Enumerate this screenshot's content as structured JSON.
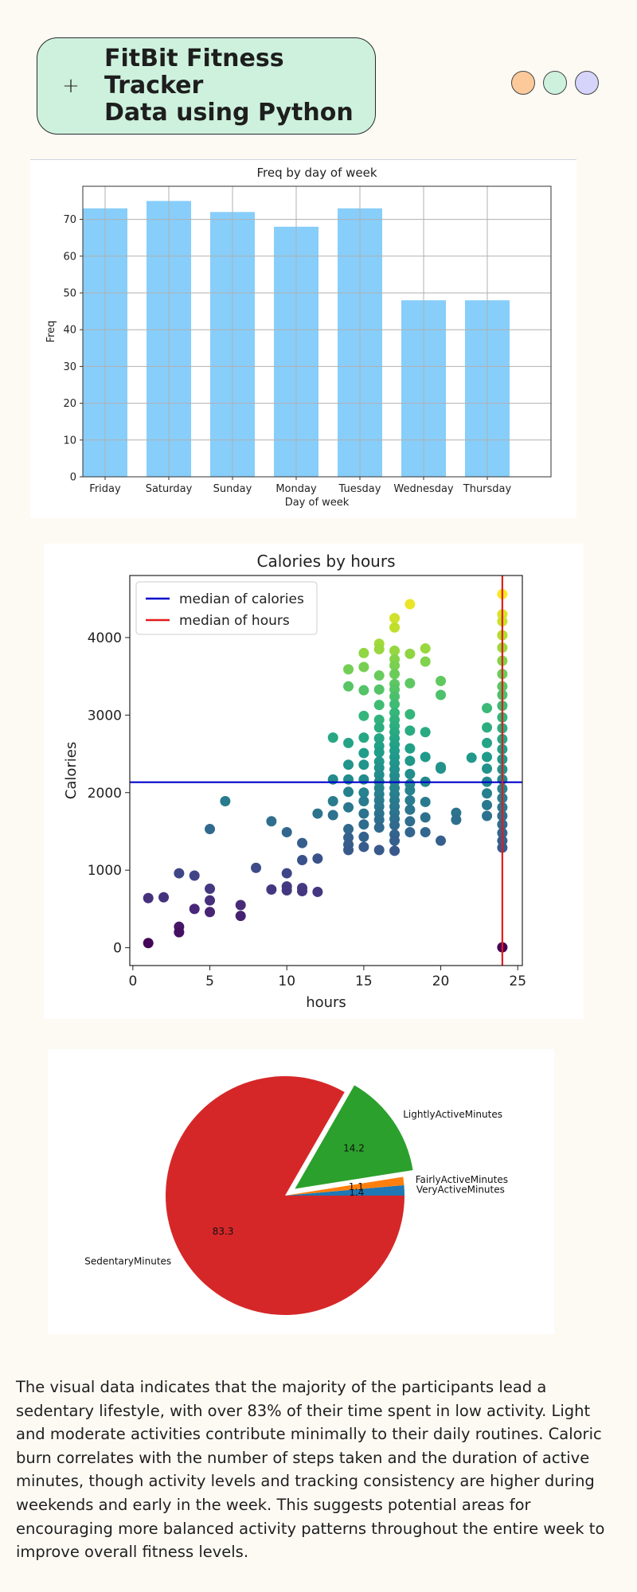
{
  "header": {
    "plus_icon": "plus-icon",
    "title_line1": "FitBit Fitness Tracker",
    "title_line2": "Data using Python",
    "dots": [
      {
        "name": "orange-dot",
        "color": "#fbc99a"
      },
      {
        "name": "green-dot",
        "color": "#cdf1dd"
      },
      {
        "name": "purple-dot",
        "color": "#d6d4fa"
      }
    ]
  },
  "chart_data": [
    {
      "type": "bar",
      "title": "Freq by day of week",
      "xlabel": "Day of week",
      "ylabel": "Freq",
      "categories": [
        "Friday",
        "Saturday",
        "Sunday",
        "Monday",
        "Tuesday",
        "Wednesday",
        "Thursday"
      ],
      "values": [
        73,
        75,
        72,
        68,
        73,
        48,
        48
      ],
      "ylim": [
        0,
        79
      ],
      "yticks": [
        0,
        10,
        20,
        30,
        40,
        50,
        60,
        70
      ],
      "grid": true,
      "color": "#87cefa"
    },
    {
      "type": "scatter",
      "title": "Calories by  hours",
      "xlabel": "hours",
      "ylabel": "Calories",
      "xlim": [
        -0.2,
        25.3
      ],
      "ylim": [
        -230,
        4800
      ],
      "xticks": [
        0,
        5,
        10,
        15,
        20,
        25
      ],
      "yticks": [
        0,
        1000,
        2000,
        3000,
        4000
      ],
      "colormap": "viridis",
      "legend": {
        "placement": "upper-left",
        "entries": [
          {
            "label": "median of calories",
            "color": "#0000cc"
          },
          {
            "label": "median of hours",
            "color": "#e31a1c"
          }
        ]
      },
      "median_calories": 2134,
      "median_hours": 24,
      "points": [
        [
          1,
          60
        ],
        [
          1,
          640
        ],
        [
          2,
          650
        ],
        [
          3,
          960
        ],
        [
          3,
          270
        ],
        [
          3,
          200
        ],
        [
          4,
          930
        ],
        [
          4,
          500
        ],
        [
          5,
          760
        ],
        [
          5,
          610
        ],
        [
          5,
          460
        ],
        [
          5,
          1530
        ],
        [
          6,
          1890
        ],
        [
          7,
          550
        ],
        [
          7,
          410
        ],
        [
          8,
          1030
        ],
        [
          9,
          1630
        ],
        [
          9,
          750
        ],
        [
          10,
          1490
        ],
        [
          10,
          960
        ],
        [
          10,
          790
        ],
        [
          10,
          740
        ],
        [
          11,
          1350
        ],
        [
          11,
          1130
        ],
        [
          11,
          770
        ],
        [
          11,
          730
        ],
        [
          12,
          1730
        ],
        [
          12,
          1150
        ],
        [
          12,
          720
        ],
        [
          13,
          2710
        ],
        [
          13,
          2170
        ],
        [
          13,
          1890
        ],
        [
          13,
          1710
        ],
        [
          14,
          3590
        ],
        [
          14,
          3370
        ],
        [
          14,
          2640
        ],
        [
          14,
          2360
        ],
        [
          14,
          2170
        ],
        [
          14,
          2010
        ],
        [
          14,
          1810
        ],
        [
          14,
          1530
        ],
        [
          14,
          1420
        ],
        [
          14,
          1330
        ],
        [
          14,
          1260
        ],
        [
          15,
          3800
        ],
        [
          15,
          3620
        ],
        [
          15,
          3320
        ],
        [
          15,
          2990
        ],
        [
          15,
          2710
        ],
        [
          15,
          2510
        ],
        [
          15,
          2360
        ],
        [
          15,
          2170
        ],
        [
          15,
          2000
        ],
        [
          15,
          1890
        ],
        [
          15,
          1730
        ],
        [
          15,
          1590
        ],
        [
          15,
          1430
        ],
        [
          15,
          1300
        ],
        [
          16,
          3920
        ],
        [
          16,
          3850
        ],
        [
          16,
          3510
        ],
        [
          16,
          3330
        ],
        [
          16,
          3130
        ],
        [
          16,
          2940
        ],
        [
          16,
          2840
        ],
        [
          16,
          2700
        ],
        [
          16,
          2600
        ],
        [
          16,
          2520
        ],
        [
          16,
          2400
        ],
        [
          16,
          2320
        ],
        [
          16,
          2230
        ],
        [
          16,
          2140
        ],
        [
          16,
          2060
        ],
        [
          16,
          1980
        ],
        [
          16,
          1900
        ],
        [
          16,
          1820
        ],
        [
          16,
          1730
        ],
        [
          16,
          1650
        ],
        [
          16,
          1550
        ],
        [
          16,
          1260
        ],
        [
          17,
          4250
        ],
        [
          17,
          4130
        ],
        [
          17,
          3830
        ],
        [
          17,
          3720
        ],
        [
          17,
          3640
        ],
        [
          17,
          3530
        ],
        [
          17,
          3400
        ],
        [
          17,
          3330
        ],
        [
          17,
          3240
        ],
        [
          17,
          3140
        ],
        [
          17,
          3030
        ],
        [
          17,
          2940
        ],
        [
          17,
          2860
        ],
        [
          17,
          2780
        ],
        [
          17,
          2700
        ],
        [
          17,
          2620
        ],
        [
          17,
          2540
        ],
        [
          17,
          2460
        ],
        [
          17,
          2380
        ],
        [
          17,
          2300
        ],
        [
          17,
          2220
        ],
        [
          17,
          2140
        ],
        [
          17,
          2060
        ],
        [
          17,
          1980
        ],
        [
          17,
          1900
        ],
        [
          17,
          1820
        ],
        [
          17,
          1740
        ],
        [
          17,
          1660
        ],
        [
          17,
          1580
        ],
        [
          17,
          1460
        ],
        [
          17,
          1380
        ],
        [
          17,
          1250
        ],
        [
          18,
          4430
        ],
        [
          18,
          3790
        ],
        [
          18,
          3410
        ],
        [
          18,
          3010
        ],
        [
          18,
          2800
        ],
        [
          18,
          2570
        ],
        [
          18,
          2410
        ],
        [
          18,
          2240
        ],
        [
          18,
          2110
        ],
        [
          18,
          2030
        ],
        [
          18,
          1900
        ],
        [
          18,
          1780
        ],
        [
          18,
          1630
        ],
        [
          18,
          1490
        ],
        [
          19,
          3860
        ],
        [
          19,
          3690
        ],
        [
          19,
          2780
        ],
        [
          19,
          2460
        ],
        [
          19,
          2140
        ],
        [
          19,
          1880
        ],
        [
          19,
          1680
        ],
        [
          19,
          1490
        ],
        [
          20,
          3440
        ],
        [
          20,
          3260
        ],
        [
          20,
          2310
        ],
        [
          20,
          2330
        ],
        [
          20,
          1380
        ],
        [
          21,
          1740
        ],
        [
          21,
          1650
        ],
        [
          22,
          2450
        ],
        [
          23,
          3090
        ],
        [
          23,
          2840
        ],
        [
          23,
          2640
        ],
        [
          23,
          2460
        ],
        [
          23,
          2310
        ],
        [
          23,
          2140
        ],
        [
          23,
          1990
        ],
        [
          23,
          1840
        ],
        [
          23,
          1700
        ],
        [
          24,
          4560
        ],
        [
          24,
          4300
        ],
        [
          24,
          4210
        ],
        [
          24,
          4030
        ],
        [
          24,
          3870
        ],
        [
          24,
          3700
        ],
        [
          24,
          3530
        ],
        [
          24,
          3370
        ],
        [
          24,
          3260
        ],
        [
          24,
          3120
        ],
        [
          24,
          2970
        ],
        [
          24,
          2830
        ],
        [
          24,
          2690
        ],
        [
          24,
          2560
        ],
        [
          24,
          2430
        ],
        [
          24,
          2300
        ],
        [
          24,
          2170
        ],
        [
          24,
          2050
        ],
        [
          24,
          1930
        ],
        [
          24,
          1810
        ],
        [
          24,
          1700
        ],
        [
          24,
          1590
        ],
        [
          24,
          1480
        ],
        [
          24,
          1380
        ],
        [
          24,
          1290
        ],
        [
          24,
          5
        ]
      ]
    },
    {
      "type": "pie",
      "slices": [
        {
          "label": "VeryActiveMinutes",
          "value": 1.4,
          "color": "#1f77b4",
          "explode": 0
        },
        {
          "label": "FairlyActiveMinutes",
          "value": 1.1,
          "color": "#ff7f0e",
          "explode": 0
        },
        {
          "label": "LightlyActiveMinutes",
          "value": 14.2,
          "color": "#2ca02c",
          "explode": 0.1
        },
        {
          "label": "SedentaryMinutes",
          "value": 83.3,
          "color": "#d62728",
          "explode": 0
        }
      ],
      "startangle": 0
    }
  ],
  "summary": {
    "text": "The visual data indicates that the majority of the participants lead a sedentary lifestyle, with over 83% of their time spent in low activity. Light and moderate activities contribute minimally to their daily routines. Caloric burn correlates with the number of steps taken and the duration of active minutes, though activity levels and tracking consistency are higher during weekends and early in the week. This suggests potential areas for encouraging more balanced activity patterns throughout the entire week to improve overall fitness levels."
  }
}
